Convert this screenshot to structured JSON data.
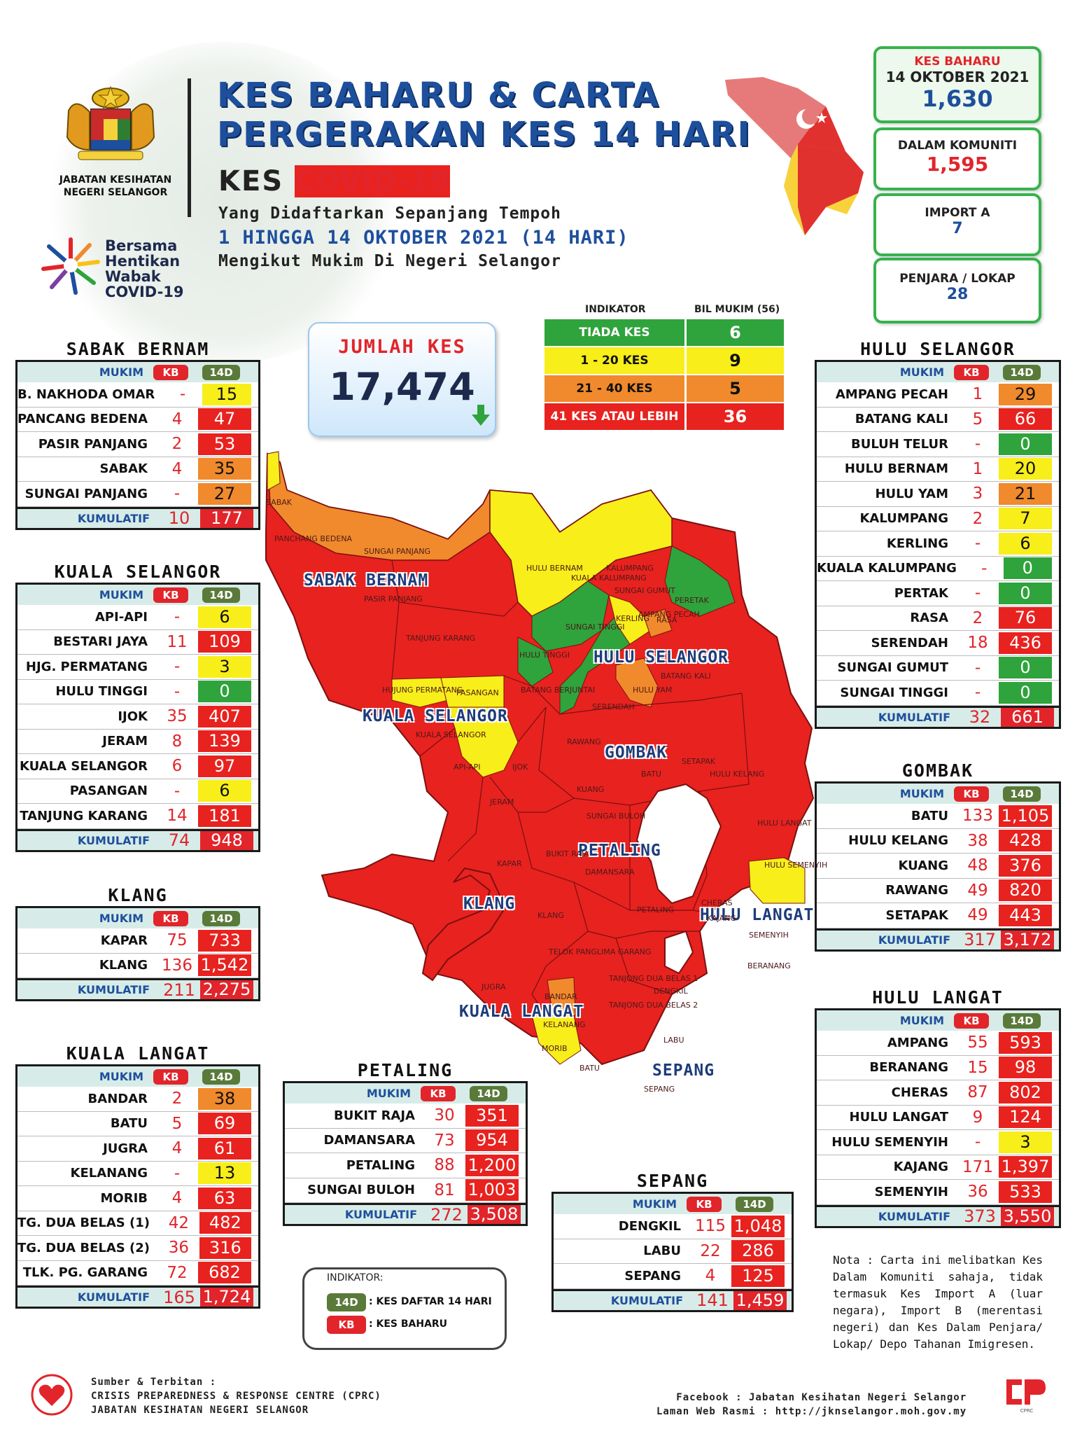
{
  "header": {
    "title_line1": "KES BAHARU & CARTA",
    "title_line2": "PERGERAKAN KES 14 HARI",
    "subtitle_kes": "KES",
    "subtitle_covid": "COVID-19",
    "desc_line1": "Yang Didaftarkan Sepanjang Tempoh",
    "desc_line2": "1 HINGGA 14 OKTOBER 2021 (14 HARI)",
    "desc_line3": "Mengikut Mukim Di Negeri Selangor",
    "agency_line1": "JABATAN KESIHATAN",
    "agency_line2": "NEGERI SELANGOR",
    "campaign_line1": "Bersama",
    "campaign_line2": "Hentikan",
    "campaign_line3": "Wabak",
    "campaign_line4": "COVID-19"
  },
  "stats": {
    "new_label1": "KES BAHARU",
    "new_label2": "14 OKTOBER 2021",
    "new_value": "1,630",
    "community_label": "DALAM KOMUNITI",
    "community_value": "1,595",
    "import_label": "IMPORT A",
    "import_value": "7",
    "prison_label": "PENJARA / LOKAP",
    "prison_value": "28"
  },
  "total": {
    "label": "JUMLAH KES",
    "value": "17,474"
  },
  "indicator": {
    "col1": "INDIKATOR",
    "col2": "BIL MUKIM (56)",
    "rows": [
      {
        "label": "TIADA KES",
        "value": "6",
        "color": "#2fa33c"
      },
      {
        "label": "1 - 20 KES",
        "value": "9",
        "color": "#f7ee1a"
      },
      {
        "label": "21 - 40 KES",
        "value": "5",
        "color": "#f08a2c"
      },
      {
        "label": "41 KES ATAU LEBIH",
        "value": "36",
        "color": "#e8221f"
      }
    ]
  },
  "columns": {
    "mukim": "MUKIM",
    "kb": "KB",
    "d14": "14D",
    "kumulatif": "KUMULATIF"
  },
  "districts": {
    "sabak_bernam": {
      "name": "SABAK BERNAM",
      "rows": [
        {
          "name": "B. NAKHODA OMAR",
          "kb": "-",
          "d14": "15",
          "level": "yellow"
        },
        {
          "name": "PANCANG BEDENA",
          "kb": "4",
          "d14": "47",
          "level": "red"
        },
        {
          "name": "PASIR PANJANG",
          "kb": "2",
          "d14": "53",
          "level": "red"
        },
        {
          "name": "SABAK",
          "kb": "4",
          "d14": "35",
          "level": "orange"
        },
        {
          "name": "SUNGAI PANJANG",
          "kb": "-",
          "d14": "27",
          "level": "orange"
        }
      ],
      "total_kb": "10",
      "total_d14": "177"
    },
    "kuala_selangor": {
      "name": "KUALA SELANGOR",
      "rows": [
        {
          "name": "API-API",
          "kb": "-",
          "d14": "6",
          "level": "yellow"
        },
        {
          "name": "BESTARI JAYA",
          "kb": "11",
          "d14": "109",
          "level": "red"
        },
        {
          "name": "HJG. PERMATANG",
          "kb": "-",
          "d14": "3",
          "level": "yellow"
        },
        {
          "name": "HULU TINGGI",
          "kb": "-",
          "d14": "0",
          "level": "green"
        },
        {
          "name": "IJOK",
          "kb": "35",
          "d14": "407",
          "level": "red"
        },
        {
          "name": "JERAM",
          "kb": "8",
          "d14": "139",
          "level": "red"
        },
        {
          "name": "KUALA SELANGOR",
          "kb": "6",
          "d14": "97",
          "level": "red"
        },
        {
          "name": "PASANGAN",
          "kb": "-",
          "d14": "6",
          "level": "yellow"
        },
        {
          "name": "TANJUNG KARANG",
          "kb": "14",
          "d14": "181",
          "level": "red"
        }
      ],
      "total_kb": "74",
      "total_d14": "948"
    },
    "klang": {
      "name": "KLANG",
      "rows": [
        {
          "name": "KAPAR",
          "kb": "75",
          "d14": "733",
          "level": "red"
        },
        {
          "name": "KLANG",
          "kb": "136",
          "d14": "1,542",
          "level": "red"
        }
      ],
      "total_kb": "211",
      "total_d14": "2,275"
    },
    "kuala_langat": {
      "name": "KUALA LANGAT",
      "rows": [
        {
          "name": "BANDAR",
          "kb": "2",
          "d14": "38",
          "level": "orange"
        },
        {
          "name": "BATU",
          "kb": "5",
          "d14": "69",
          "level": "red"
        },
        {
          "name": "JUGRA",
          "kb": "4",
          "d14": "61",
          "level": "red"
        },
        {
          "name": "KELANANG",
          "kb": "-",
          "d14": "13",
          "level": "yellow"
        },
        {
          "name": "MORIB",
          "kb": "4",
          "d14": "63",
          "level": "red"
        },
        {
          "name": "TG. DUA BELAS (1)",
          "kb": "42",
          "d14": "482",
          "level": "red"
        },
        {
          "name": "TG. DUA BELAS (2)",
          "kb": "36",
          "d14": "316",
          "level": "red"
        },
        {
          "name": "TLK. PG. GARANG",
          "kb": "72",
          "d14": "682",
          "level": "red"
        }
      ],
      "total_kb": "165",
      "total_d14": "1,724"
    },
    "petaling": {
      "name": "PETALING",
      "rows": [
        {
          "name": "BUKIT RAJA",
          "kb": "30",
          "d14": "351",
          "level": "red"
        },
        {
          "name": "DAMANSARA",
          "kb": "73",
          "d14": "954",
          "level": "red"
        },
        {
          "name": "PETALING",
          "kb": "88",
          "d14": "1,200",
          "level": "red"
        },
        {
          "name": "SUNGAI BULOH",
          "kb": "81",
          "d14": "1,003",
          "level": "red"
        }
      ],
      "total_kb": "272",
      "total_d14": "3,508"
    },
    "sepang": {
      "name": "SEPANG",
      "rows": [
        {
          "name": "DENGKIL",
          "kb": "115",
          "d14": "1,048",
          "level": "red"
        },
        {
          "name": "LABU",
          "kb": "22",
          "d14": "286",
          "level": "red"
        },
        {
          "name": "SEPANG",
          "kb": "4",
          "d14": "125",
          "level": "red"
        }
      ],
      "total_kb": "141",
      "total_d14": "1,459"
    },
    "hulu_selangor": {
      "name": "HULU SELANGOR",
      "rows": [
        {
          "name": "AMPANG PECAH",
          "kb": "1",
          "d14": "29",
          "level": "orange"
        },
        {
          "name": "BATANG KALI",
          "kb": "5",
          "d14": "66",
          "level": "red"
        },
        {
          "name": "BULUH TELUR",
          "kb": "-",
          "d14": "0",
          "level": "green"
        },
        {
          "name": "HULU BERNAM",
          "kb": "1",
          "d14": "20",
          "level": "yellow"
        },
        {
          "name": "HULU YAM",
          "kb": "3",
          "d14": "21",
          "level": "orange"
        },
        {
          "name": "KALUMPANG",
          "kb": "2",
          "d14": "7",
          "level": "yellow"
        },
        {
          "name": "KERLING",
          "kb": "-",
          "d14": "6",
          "level": "yellow"
        },
        {
          "name": "KUALA KALUMPANG",
          "kb": "-",
          "d14": "0",
          "level": "green"
        },
        {
          "name": "PERTAK",
          "kb": "-",
          "d14": "0",
          "level": "green"
        },
        {
          "name": "RASA",
          "kb": "2",
          "d14": "76",
          "level": "red"
        },
        {
          "name": "SERENDAH",
          "kb": "18",
          "d14": "436",
          "level": "red"
        },
        {
          "name": "SUNGAI GUMUT",
          "kb": "-",
          "d14": "0",
          "level": "green"
        },
        {
          "name": "SUNGAI TINGGI",
          "kb": "-",
          "d14": "0",
          "level": "green"
        }
      ],
      "total_kb": "32",
      "total_d14": "661"
    },
    "gombak": {
      "name": "GOMBAK",
      "rows": [
        {
          "name": "BATU",
          "kb": "133",
          "d14": "1,105",
          "level": "red"
        },
        {
          "name": "HULU KELANG",
          "kb": "38",
          "d14": "428",
          "level": "red"
        },
        {
          "name": "KUANG",
          "kb": "48",
          "d14": "376",
          "level": "red"
        },
        {
          "name": "RAWANG",
          "kb": "49",
          "d14": "820",
          "level": "red"
        },
        {
          "name": "SETAPAK",
          "kb": "49",
          "d14": "443",
          "level": "red"
        }
      ],
      "total_kb": "317",
      "total_d14": "3,172"
    },
    "hulu_langat": {
      "name": "HULU LANGAT",
      "rows": [
        {
          "name": "AMPANG",
          "kb": "55",
          "d14": "593",
          "level": "red"
        },
        {
          "name": "BERANANG",
          "kb": "15",
          "d14": "98",
          "level": "red"
        },
        {
          "name": "CHERAS",
          "kb": "87",
          "d14": "802",
          "level": "red"
        },
        {
          "name": "HULU LANGAT",
          "kb": "9",
          "d14": "124",
          "level": "red"
        },
        {
          "name": "HULU SEMENYIH",
          "kb": "-",
          "d14": "3",
          "level": "yellow"
        },
        {
          "name": "KAJANG",
          "kb": "171",
          "d14": "1,397",
          "level": "red"
        },
        {
          "name": "SEMENYIH",
          "kb": "36",
          "d14": "533",
          "level": "red"
        }
      ],
      "total_kb": "373",
      "total_d14": "3,550"
    }
  },
  "map_labels": {
    "sabak_bernam": "SABAK BERNAM",
    "hulu_selangor": "HULU SELANGOR",
    "kuala_selangor": "KUALA SELANGOR",
    "gombak": "GOMBAK",
    "petaling": "PETALING",
    "klang": "KLANG",
    "hulu_langat": "HULU LANGAT",
    "kuala_langat": "KUALA LANGAT",
    "sepang": "SEPANG"
  },
  "map_mukim": [
    "SABAK",
    "PANCHANG BEDENA",
    "SUNGAI PANJANG",
    "PASIR PANJANG",
    "TANJUNG KARANG",
    "HULU BERNAM",
    "KALUMPANG",
    "KUALA KALUMPANG",
    "SUNGAI GUMUT",
    "PERETAK",
    "KERLING",
    "AMPANG PECAH",
    "SUNGAI TINGGI",
    "HULU TINGGI",
    "RASA",
    "BATANG KALI",
    "HULU YAM",
    "SERENDAH",
    "HUJUNG PERMATANG",
    "PASANGAN",
    "BATANG BERJUNTAI",
    "KUALA SELANGOR",
    "RAWANG",
    "API-API",
    "IJOK",
    "SETAPAK",
    "KUANG",
    "BATU",
    "HULU KELANG",
    "JERAM",
    "SUNGAI BULOH",
    "HULU LANGAT",
    "KAPAR",
    "BUKIT RAJA",
    "DAMANSARA",
    "HULU SEMENYIH",
    "CHERAS",
    "KLANG",
    "PETALING",
    "KAJANG",
    "SEMENYIH",
    "TELOK PANGLIMA GARANG",
    "TANJONG DUA BELAS 1",
    "BERANANG",
    "JUGRA",
    "BANDAR",
    "TANJONG DUA BELAS 2",
    "DENGKIL",
    "KELANANG",
    "LABU",
    "MORIB",
    "BATU",
    "SEPANG"
  ],
  "legend": {
    "title": "INDIKATOR:",
    "d14_tag": "14D",
    "d14_text": ": KES DAFTAR 14 HARI",
    "kb_tag": "KB",
    "kb_text": ": KES BAHARU"
  },
  "note": "Nota : Carta ini melibatkan Kes Dalam Komuniti sahaja, tidak termasuk Kes Import A (luar negara), Import B (merentasi negeri) dan Kes Dalam Penjara/ Lokap/ Depo Tahanan Imigresen.",
  "footer": {
    "source1": "Sumber & Terbitan :",
    "source2": "CRISIS PREPAREDNESS & RESPONSE CENTRE (CPRC)",
    "source3": "JABATAN KESIHATAN NEGERI SELANGOR",
    "fb": "Facebook : Jabatan Kesihatan Negeri Selangor",
    "web": "Laman Web Rasmi : http://jknselangor.moh.gov.my",
    "cprc": "CPRC"
  },
  "colors": {
    "red": "#e8221f",
    "orange": "#f08a2c",
    "yellow": "#f7ee1a",
    "green": "#2fa33c",
    "blue": "#1d4f9c"
  }
}
